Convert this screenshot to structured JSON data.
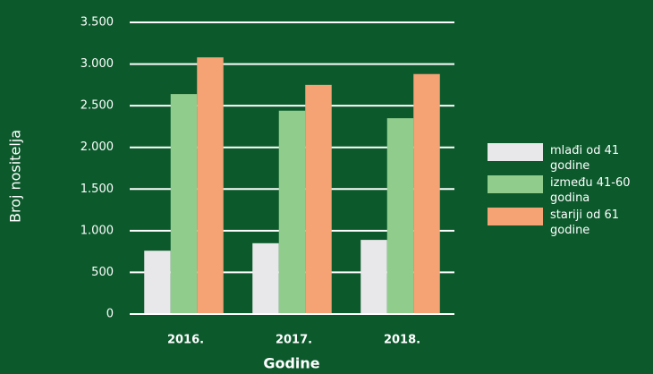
{
  "chart_data": {
    "type": "bar",
    "x_label": "Godine",
    "y_label": "Broj nositelja",
    "categories": [
      "2016.",
      "2017.",
      "2018."
    ],
    "series": [
      {
        "name": "mlađi od 41 godine",
        "color": "#e8e8ea",
        "values": [
          760,
          850,
          890
        ]
      },
      {
        "name": "između 41-60 godina",
        "color": "#90cc8c",
        "values": [
          2640,
          2440,
          2350
        ]
      },
      {
        "name": "stariji od 61 godine",
        "color": "#f5a274",
        "values": [
          3080,
          2750,
          2880
        ]
      }
    ],
    "ylim": [
      0,
      3500
    ],
    "yticks": [
      0,
      500,
      {
        "value": 1000,
        "label": "1.000"
      },
      {
        "value": 1500,
        "label": "1.500"
      },
      {
        "value": 2000,
        "label": "2.000"
      },
      {
        "value": 2500,
        "label": "2.500"
      },
      {
        "value": 3000,
        "label": "3.000"
      },
      {
        "value": 3500,
        "label": "3.500"
      }
    ],
    "grid": true,
    "legend": "right",
    "background": "#0c5a2c"
  }
}
